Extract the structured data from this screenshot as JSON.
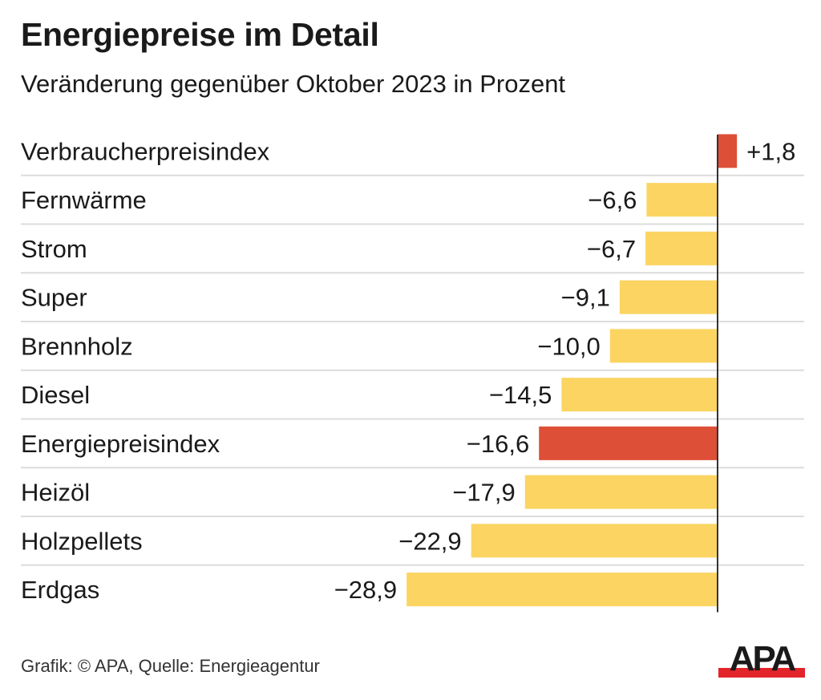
{
  "header": {
    "title": "Energiepreise im Detail",
    "subtitle": "Veränderung gegenüber Oktober 2023 in Prozent"
  },
  "footer": {
    "source": "Grafik: © APA, Quelle: Energieagentur",
    "logo_text": "APA"
  },
  "colors": {
    "highlight": "#dd4f36",
    "default_bar": "#fbd462",
    "gridline": "#dcdcdc",
    "axis": "#333333",
    "logo_red": "#e3242b",
    "logo_black": "#1a1a1a"
  },
  "chart_data": {
    "type": "bar",
    "orientation": "horizontal",
    "title": "Energiepreise im Detail",
    "subtitle": "Veränderung gegenüber Oktober 2023 in Prozent",
    "xlabel": "",
    "ylabel": "",
    "grid": true,
    "legend": "none",
    "xlim": [
      -29,
      2
    ],
    "categories": [
      "Verbraucherpreisindex",
      "Fernwärme",
      "Strom",
      "Super",
      "Brennholz",
      "Diesel",
      "Energiepreisindex",
      "Heizöl",
      "Holzpellets",
      "Erdgas"
    ],
    "values": [
      1.8,
      -6.6,
      -6.7,
      -9.1,
      -10.0,
      -14.5,
      -16.6,
      -17.9,
      -22.9,
      -28.9
    ],
    "value_labels": [
      "+1,8",
      "−6,6",
      "−6,7",
      "−9,1",
      "−10,0",
      "−14,5",
      "−16,6",
      "−17,9",
      "−22,9",
      "−28,9"
    ],
    "highlighted": [
      "Verbraucherpreisindex",
      "Energiepreisindex"
    ]
  }
}
